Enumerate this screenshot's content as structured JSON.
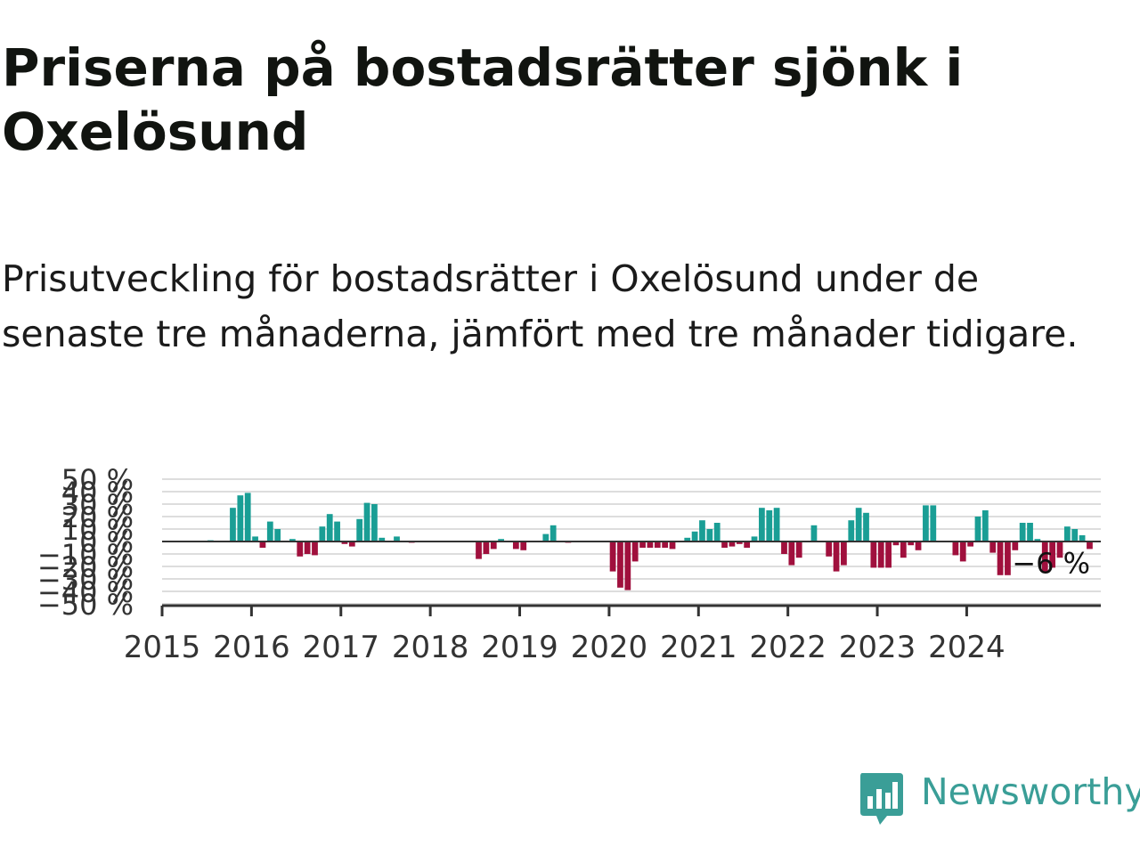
{
  "header": {
    "title": "Priserna på bostadsrätter sjönk i Oxelösund",
    "subtitle": "Prisutveckling för bostadsrätter i Oxelösund under de senaste tre månaderna, jämfört med tre månader tidigare."
  },
  "logo": {
    "text": "Newsworthy",
    "icon": "bar-chart-speech-bubble-icon",
    "color": "#3a9e97"
  },
  "colors": {
    "positive": "#1a9e95",
    "negative": "#a0103d",
    "grid": "#dddddd",
    "axis": "#333333"
  },
  "chart_data": {
    "type": "bar",
    "title": "",
    "xlabel": "",
    "ylabel": "",
    "ylim": [
      -50,
      50
    ],
    "y_ticks": [
      "50 %",
      "40 %",
      "30 %",
      "20 %",
      "10 %",
      "0 %",
      "−10 %",
      "−20 %",
      "−30 %",
      "−40 %",
      "−50 %"
    ],
    "y_tick_values": [
      50,
      40,
      30,
      20,
      10,
      0,
      -10,
      -20,
      -30,
      -40,
      -50
    ],
    "x_ticks": [
      "2015",
      "2016",
      "2017",
      "2018",
      "2019",
      "2020",
      "2021",
      "2022",
      "2023",
      "2024"
    ],
    "x_tick_values": [
      2015,
      2016,
      2017,
      2018,
      2019,
      2020,
      2021,
      2022,
      2023,
      2024
    ],
    "x_start": 2015,
    "x_end": 2025.5,
    "grid": true,
    "last_value_label": "−6 %",
    "series": [
      {
        "x": [
          "2015-01",
          "2015-02",
          "2015-03",
          "2015-04",
          "2015-05",
          "2015-06",
          "2015-07",
          "2015-08",
          "2015-09",
          "2015-10",
          "2015-11",
          "2015-12",
          "2016-01",
          "2016-02",
          "2016-03",
          "2016-04",
          "2016-05",
          "2016-06",
          "2016-07",
          "2016-08",
          "2016-09",
          "2016-10",
          "2016-11",
          "2016-12",
          "2017-01",
          "2017-02",
          "2017-03",
          "2017-04",
          "2017-05",
          "2017-06",
          "2017-07",
          "2017-08",
          "2017-09",
          "2017-10",
          "2017-11",
          "2017-12",
          "2018-01",
          "2018-02",
          "2018-03",
          "2018-04",
          "2018-05",
          "2018-06",
          "2018-07",
          "2018-08",
          "2018-09",
          "2018-10",
          "2018-11",
          "2018-12",
          "2019-01",
          "2019-02",
          "2019-03",
          "2019-04",
          "2019-05",
          "2019-06",
          "2019-07",
          "2019-08",
          "2019-09",
          "2019-10",
          "2019-11",
          "2019-12",
          "2020-01",
          "2020-02",
          "2020-03",
          "2020-04",
          "2020-05",
          "2020-06",
          "2020-07",
          "2020-08",
          "2020-09",
          "2020-10",
          "2020-11",
          "2020-12",
          "2021-01",
          "2021-02",
          "2021-03",
          "2021-04",
          "2021-05",
          "2021-06",
          "2021-07",
          "2021-08",
          "2021-09",
          "2021-10",
          "2021-11",
          "2021-12",
          "2022-01",
          "2022-02",
          "2022-03",
          "2022-04",
          "2022-05",
          "2022-06",
          "2022-07",
          "2022-08",
          "2022-09",
          "2022-10",
          "2022-11",
          "2022-12",
          "2023-01",
          "2023-02",
          "2023-03",
          "2023-04",
          "2023-05",
          "2023-06",
          "2023-07",
          "2023-08",
          "2023-09",
          "2023-10",
          "2023-11",
          "2023-12",
          "2024-01",
          "2024-02",
          "2024-03",
          "2024-04",
          "2024-05",
          "2024-06",
          "2024-07",
          "2024-08",
          "2024-09",
          "2024-10",
          "2024-11",
          "2024-12",
          "2025-01",
          "2025-02",
          "2025-03",
          "2025-04",
          "2025-05",
          "2025-06"
        ],
        "values": [
          0,
          0,
          0,
          0,
          0,
          0,
          1,
          0,
          0,
          27,
          37,
          39,
          4,
          -5,
          16,
          10,
          0,
          2,
          -12,
          -10,
          -11,
          12,
          22,
          16,
          -2,
          -4,
          18,
          31,
          30,
          3,
          0,
          4,
          0,
          -1,
          0,
          0,
          0,
          0,
          0,
          0,
          0,
          0,
          -14,
          -10,
          -6,
          2,
          0,
          -6,
          -7,
          0,
          0,
          6,
          13,
          0,
          -1,
          0,
          0,
          0,
          0,
          0,
          -24,
          -37,
          -39,
          -16,
          -5,
          -5,
          -5,
          -5,
          -6,
          0,
          3,
          8,
          17,
          10,
          15,
          -5,
          -4,
          -2,
          -5,
          4,
          27,
          25,
          27,
          -10,
          -19,
          -13,
          0,
          13,
          0,
          -12,
          -24,
          -19,
          17,
          27,
          23,
          -21,
          -21,
          -21,
          -3,
          -13,
          -3,
          -7,
          29,
          29,
          0,
          0,
          -11,
          -16,
          -4,
          20,
          25,
          -9,
          -27,
          -27,
          -7,
          15,
          15,
          2,
          -25,
          -21,
          -13,
          12,
          10,
          5,
          -6,
          0
        ]
      }
    ]
  }
}
